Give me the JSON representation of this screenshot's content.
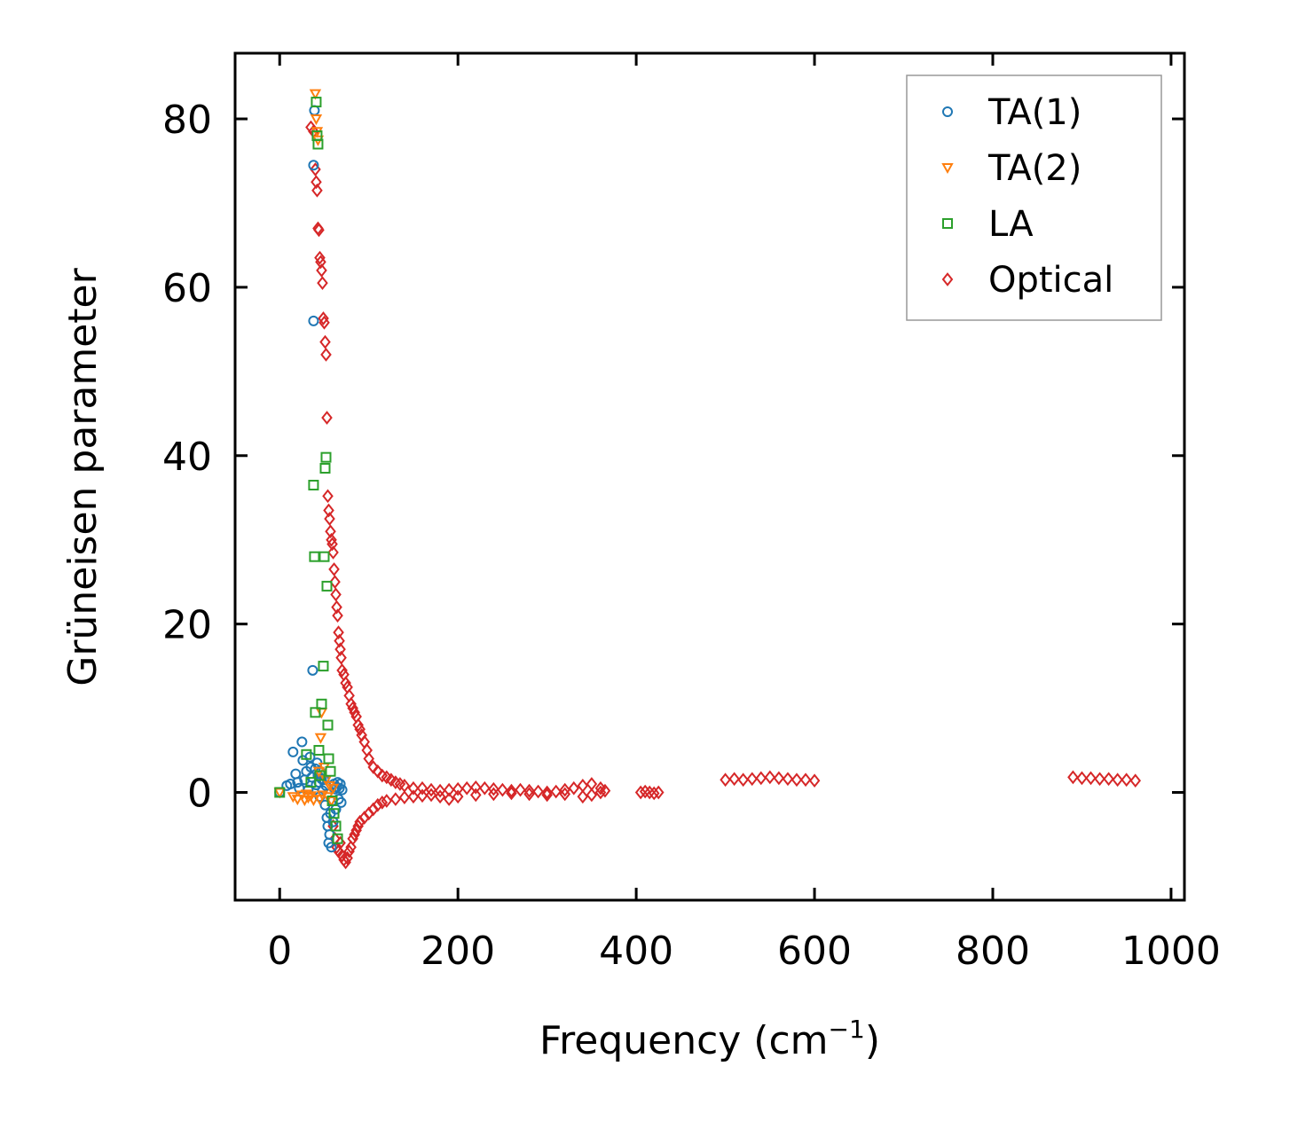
{
  "chart_data": {
    "type": "scatter",
    "title": "",
    "xlabel": "Frequency (cm",
    "xlabel_sup": "−1",
    "xlabel_end": ")",
    "ylabel": "Grüneisen parameter",
    "xlim": [
      -50,
      1015
    ],
    "ylim": [
      -12.8,
      87.8
    ],
    "xticks": [
      0,
      200,
      400,
      600,
      800,
      1000
    ],
    "yticks": [
      0,
      20,
      40,
      60,
      80
    ],
    "grid": false,
    "legend_position": "top-right",
    "series": [
      {
        "name": "TA(1)",
        "marker": "circle",
        "color": "#1f77b4",
        "points": [
          [
            0,
            0
          ],
          [
            8,
            0.8
          ],
          [
            12,
            1.0
          ],
          [
            15,
            4.8
          ],
          [
            18,
            2.2
          ],
          [
            20,
            1.2
          ],
          [
            22,
            0.5
          ],
          [
            25,
            6.0
          ],
          [
            26,
            3.8
          ],
          [
            28,
            1.5
          ],
          [
            30,
            2.5
          ],
          [
            32,
            0.3
          ],
          [
            34,
            4.2
          ],
          [
            35,
            3.0
          ],
          [
            36,
            1.8
          ],
          [
            37,
            14.5
          ],
          [
            38,
            56.0
          ],
          [
            38,
            74.5
          ],
          [
            39,
            81.0
          ],
          [
            40,
            2.8
          ],
          [
            41,
            0.9
          ],
          [
            42,
            3.5
          ],
          [
            43,
            2.0
          ],
          [
            44,
            1.2
          ],
          [
            45,
            -0.5
          ],
          [
            46,
            2.4
          ],
          [
            47,
            1.6
          ],
          [
            48,
            0.2
          ],
          [
            50,
            1.5
          ],
          [
            51,
            -1.5
          ],
          [
            52,
            0.8
          ],
          [
            53,
            -3.0
          ],
          [
            54,
            -4.0
          ],
          [
            55,
            -6.0
          ],
          [
            56,
            -5.0
          ],
          [
            57,
            -2.5
          ],
          [
            58,
            -6.5
          ],
          [
            59,
            -1.0
          ],
          [
            60,
            -3.5
          ],
          [
            61,
            1.0
          ],
          [
            62,
            0.4
          ],
          [
            63,
            -2.0
          ],
          [
            64,
            0.6
          ],
          [
            65,
            1.2
          ],
          [
            66,
            -0.8
          ],
          [
            67,
            0.5
          ],
          [
            68,
            1.0
          ],
          [
            69,
            -1.2
          ],
          [
            70,
            0.3
          ]
        ]
      },
      {
        "name": "TA(2)",
        "marker": "triangle-down",
        "color": "#ff7f0e",
        "points": [
          [
            0,
            0
          ],
          [
            15,
            -0.5
          ],
          [
            20,
            -0.8
          ],
          [
            25,
            -0.3
          ],
          [
            28,
            -0.9
          ],
          [
            30,
            -0.2
          ],
          [
            32,
            -0.6
          ],
          [
            35,
            -0.4
          ],
          [
            38,
            -0.9
          ],
          [
            40,
            83.0
          ],
          [
            41,
            80.0
          ],
          [
            42,
            78.5
          ],
          [
            43,
            77.5
          ],
          [
            44,
            2.5
          ],
          [
            45,
            -0.8
          ],
          [
            46,
            6.5
          ],
          [
            47,
            9.5
          ],
          [
            48,
            -0.3
          ],
          [
            50,
            3.0
          ],
          [
            52,
            1.5
          ],
          [
            54,
            -0.5
          ],
          [
            56,
            0.8
          ],
          [
            58,
            -1.0
          ],
          [
            60,
            0.5
          ]
        ]
      },
      {
        "name": "LA",
        "marker": "square",
        "color": "#2ca02c",
        "points": [
          [
            0,
            0
          ],
          [
            30,
            4.5
          ],
          [
            35,
            1.2
          ],
          [
            38,
            36.5
          ],
          [
            39,
            28.0
          ],
          [
            40,
            9.5
          ],
          [
            41,
            82.0
          ],
          [
            42,
            78.0
          ],
          [
            43,
            77.0
          ],
          [
            44,
            5.0
          ],
          [
            45,
            2.0
          ],
          [
            47,
            10.5
          ],
          [
            49,
            15.0
          ],
          [
            50,
            28.0
          ],
          [
            51,
            38.5
          ],
          [
            52,
            39.8
          ],
          [
            53,
            24.5
          ],
          [
            54,
            8.0
          ],
          [
            55,
            4.0
          ],
          [
            57,
            2.5
          ],
          [
            59,
            -1.0
          ],
          [
            61,
            -2.5
          ],
          [
            63,
            -4.0
          ],
          [
            65,
            -5.5
          ]
        ]
      },
      {
        "name": "Optical",
        "marker": "diamond",
        "color": "#d62728",
        "points": [
          [
            35,
            79.0
          ],
          [
            38,
            78.5
          ],
          [
            40,
            74.0
          ],
          [
            41,
            72.5
          ],
          [
            42,
            71.5
          ],
          [
            43,
            67.0
          ],
          [
            44,
            66.8
          ],
          [
            45,
            63.5
          ],
          [
            46,
            63.0
          ],
          [
            47,
            62.0
          ],
          [
            48,
            60.5
          ],
          [
            49,
            56.3
          ],
          [
            50,
            55.8
          ],
          [
            51,
            53.5
          ],
          [
            52,
            52.0
          ],
          [
            53,
            44.5
          ],
          [
            54,
            35.2
          ],
          [
            55,
            33.5
          ],
          [
            56,
            32.5
          ],
          [
            57,
            31.0
          ],
          [
            58,
            30.0
          ],
          [
            59,
            29.5
          ],
          [
            60,
            28.5
          ],
          [
            61,
            26.5
          ],
          [
            62,
            25.0
          ],
          [
            63,
            23.5
          ],
          [
            64,
            22.0
          ],
          [
            65,
            21.0
          ],
          [
            66,
            19.0
          ],
          [
            67,
            18.0
          ],
          [
            68,
            17.0
          ],
          [
            69,
            16.0
          ],
          [
            70,
            14.5
          ],
          [
            72,
            14.0
          ],
          [
            74,
            13.0
          ],
          [
            76,
            12.5
          ],
          [
            78,
            11.5
          ],
          [
            80,
            10.5
          ],
          [
            82,
            10.0
          ],
          [
            84,
            9.5
          ],
          [
            86,
            9.0
          ],
          [
            88,
            8.0
          ],
          [
            90,
            7.5
          ],
          [
            92,
            6.8
          ],
          [
            95,
            6.0
          ],
          [
            98,
            5.0
          ],
          [
            100,
            4.0
          ],
          [
            105,
            3.0
          ],
          [
            110,
            2.5
          ],
          [
            115,
            2.0
          ],
          [
            120,
            1.8
          ],
          [
            125,
            1.5
          ],
          [
            130,
            1.2
          ],
          [
            135,
            1.0
          ],
          [
            140,
            0.8
          ],
          [
            150,
            0.5
          ],
          [
            160,
            0.5
          ],
          [
            170,
            0.3
          ],
          [
            180,
            0.2
          ],
          [
            190,
            0.3
          ],
          [
            200,
            0.4
          ],
          [
            210,
            0.5
          ],
          [
            220,
            0.6
          ],
          [
            230,
            0.5
          ],
          [
            240,
            0.4
          ],
          [
            250,
            0.3
          ],
          [
            260,
            0.2
          ],
          [
            270,
            0.3
          ],
          [
            280,
            0.2
          ],
          [
            290,
            0.1
          ],
          [
            300,
            0.0
          ],
          [
            310,
            0.1
          ],
          [
            320,
            0.3
          ],
          [
            330,
            0.5
          ],
          [
            340,
            0.8
          ],
          [
            350,
            1.0
          ],
          [
            360,
            0.5
          ],
          [
            405,
            0.0
          ],
          [
            410,
            0.1
          ],
          [
            415,
            0.0
          ],
          [
            420,
            -0.1
          ],
          [
            425,
            0.0
          ],
          [
            500,
            1.5
          ],
          [
            510,
            1.6
          ],
          [
            520,
            1.5
          ],
          [
            530,
            1.6
          ],
          [
            540,
            1.7
          ],
          [
            550,
            1.8
          ],
          [
            560,
            1.7
          ],
          [
            570,
            1.6
          ],
          [
            580,
            1.5
          ],
          [
            590,
            1.5
          ],
          [
            600,
            1.4
          ],
          [
            890,
            1.8
          ],
          [
            900,
            1.7
          ],
          [
            910,
            1.7
          ],
          [
            920,
            1.6
          ],
          [
            930,
            1.6
          ],
          [
            940,
            1.5
          ],
          [
            950,
            1.5
          ],
          [
            960,
            1.4
          ],
          [
            60,
            -4.0
          ],
          [
            62,
            -5.5
          ],
          [
            64,
            -6.5
          ],
          [
            66,
            -7.0
          ],
          [
            68,
            -6.0
          ],
          [
            70,
            -7.5
          ],
          [
            72,
            -8.0
          ],
          [
            74,
            -8.3
          ],
          [
            76,
            -7.8
          ],
          [
            78,
            -7.0
          ],
          [
            80,
            -6.5
          ],
          [
            82,
            -5.5
          ],
          [
            84,
            -5.0
          ],
          [
            86,
            -4.5
          ],
          [
            88,
            -4.0
          ],
          [
            90,
            -3.5
          ],
          [
            95,
            -3.0
          ],
          [
            100,
            -2.5
          ],
          [
            105,
            -2.0
          ],
          [
            110,
            -1.5
          ],
          [
            115,
            -1.2
          ],
          [
            120,
            -1.0
          ],
          [
            130,
            -0.8
          ],
          [
            140,
            -0.6
          ],
          [
            150,
            -0.5
          ],
          [
            160,
            -0.4
          ],
          [
            170,
            -0.3
          ],
          [
            180,
            -0.5
          ],
          [
            190,
            -0.8
          ],
          [
            200,
            -0.5
          ],
          [
            220,
            -0.3
          ],
          [
            240,
            -0.2
          ],
          [
            260,
            -0.1
          ],
          [
            280,
            -0.2
          ],
          [
            300,
            -0.3
          ],
          [
            320,
            -0.2
          ],
          [
            340,
            -0.5
          ],
          [
            350,
            -0.3
          ],
          [
            360,
            0.0
          ],
          [
            365,
            0.2
          ]
        ]
      }
    ]
  }
}
